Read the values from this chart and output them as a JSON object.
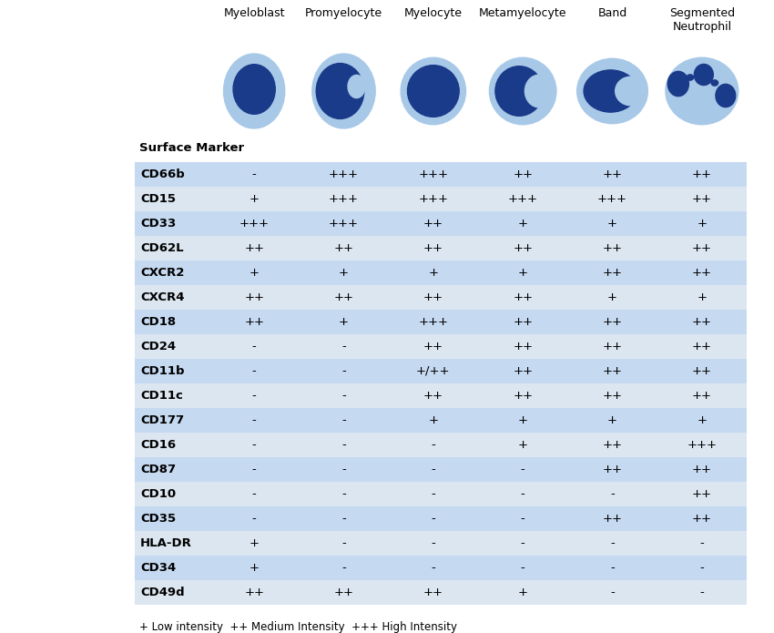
{
  "col_headers": [
    "Myeloblast",
    "Promyelocyte",
    "Myelocyte",
    "Metamyelocyte",
    "Band",
    "Segmented\nNeutrophil"
  ],
  "row_headers": [
    "CD66b",
    "CD15",
    "CD33",
    "CD62L",
    "CXCR2",
    "CXCR4",
    "CD18",
    "CD24",
    "CD11b",
    "CD11c",
    "CD177",
    "CD16",
    "CD87",
    "CD10",
    "CD35",
    "HLA-DR",
    "CD34",
    "CD49d"
  ],
  "bold_rows": [
    "HLA-DR"
  ],
  "table_data": [
    [
      "-",
      "+++",
      "+++",
      "++",
      "++",
      "++"
    ],
    [
      "+",
      "+++",
      "+++",
      "+++",
      "+++",
      "++"
    ],
    [
      "+++",
      "+++",
      "++",
      "+",
      "+",
      "+"
    ],
    [
      "++",
      "++",
      "++",
      "++",
      "++",
      "++"
    ],
    [
      "+",
      "+",
      "+",
      "+",
      "++",
      "++"
    ],
    [
      "++",
      "++",
      "++",
      "++",
      "+",
      "+"
    ],
    [
      "++",
      "+",
      "+++",
      "++",
      "++",
      "++"
    ],
    [
      "-",
      "-",
      "++",
      "++",
      "++",
      "++"
    ],
    [
      "-",
      "-",
      "+/++",
      "++",
      "++",
      "++"
    ],
    [
      "-",
      "-",
      "++",
      "++",
      "++",
      "++"
    ],
    [
      "-",
      "-",
      "+",
      "+",
      "+",
      "+"
    ],
    [
      "-",
      "-",
      "-",
      "+",
      "++",
      "+++"
    ],
    [
      "-",
      "-",
      "-",
      "-",
      "++",
      "++"
    ],
    [
      "-",
      "-",
      "-",
      "-",
      "-",
      "++"
    ],
    [
      "-",
      "-",
      "-",
      "-",
      "++",
      "++"
    ],
    [
      "+",
      "-",
      "-",
      "-",
      "-",
      "-"
    ],
    [
      "+",
      "-",
      "-",
      "-",
      "-",
      "-"
    ],
    [
      "++",
      "++",
      "++",
      "+",
      "-",
      "-"
    ]
  ],
  "row_colors": [
    "#c5d9f1",
    "#dce6f1"
  ],
  "header_label": "Surface Marker",
  "footnote": "+ Low intensity  ++ Medium Intensity  +++ High Intensity",
  "light_blue": "#a8c8e8",
  "dark_blue": "#1a3a8a",
  "bg_color": "white"
}
